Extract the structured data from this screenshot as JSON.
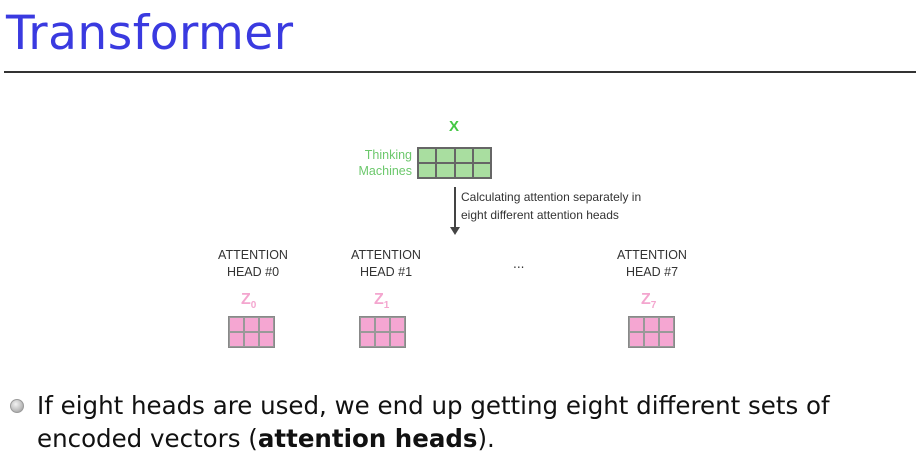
{
  "slide": {
    "title": "Transformer"
  },
  "diagram": {
    "input_symbol": "X",
    "input_label_line1": "Thinking",
    "input_label_line2": "Machines",
    "calc_line1": "Calculating attention separately in",
    "calc_line2": "eight different attention heads",
    "heads": [
      {
        "line1": "ATTENTION",
        "line2": "HEAD #0",
        "z": "Z",
        "sub": "0"
      },
      {
        "line1": "ATTENTION",
        "line2": "HEAD #1",
        "z": "Z",
        "sub": "1"
      },
      {
        "line1": "ATTENTION",
        "line2": "HEAD #7",
        "z": "Z",
        "sub": "7"
      }
    ],
    "ellipsis": "...",
    "colors": {
      "input": "#a9dea0",
      "output": "#f5a6d2",
      "title": "#3a3ae0"
    }
  },
  "bullet": {
    "text_before": "If eight heads are used, we end up getting eight different sets of encoded vectors (",
    "bold": "attention heads",
    "text_after": ")."
  }
}
